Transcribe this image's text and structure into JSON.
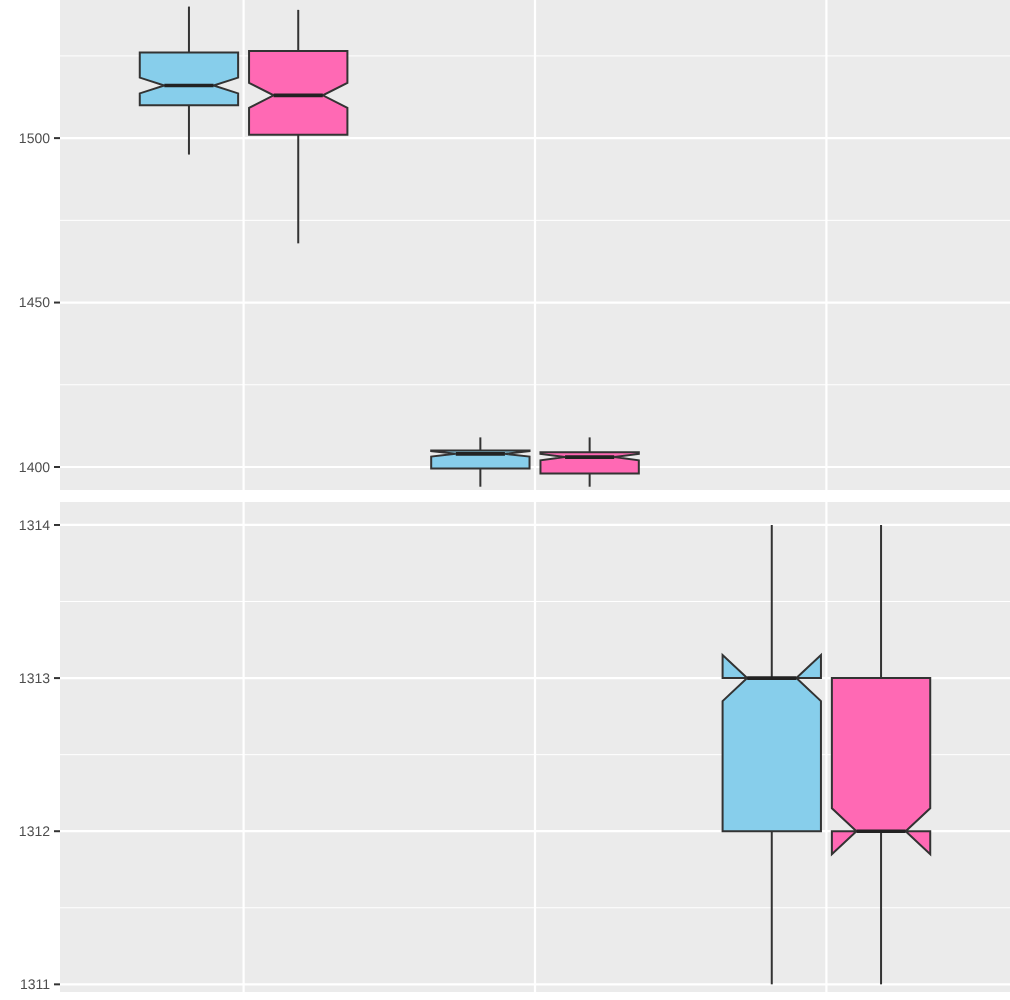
{
  "chart_data": [
    {
      "type": "box",
      "categories": [
        null,
        null,
        null
      ],
      "ylim": [
        1393,
        1542
      ],
      "yticks": [
        {
          "value": 1400,
          "label": "1400"
        },
        {
          "value": 1425,
          "label": null
        },
        {
          "value": 1450,
          "label": "1450"
        },
        {
          "value": 1475,
          "label": null
        },
        {
          "value": 1500,
          "label": "1500"
        },
        {
          "value": 1525,
          "label": null
        }
      ],
      "grid": true,
      "tick_labels": "y",
      "series": [
        {
          "color": "#87ceeb",
          "boxes": [
            {
              "low": 1495,
              "q1": 1510,
              "median": 1516,
              "q3": 1526,
              "high": 1540
            },
            {
              "low": 1394,
              "q1": 1399.5,
              "median": 1404,
              "q3": 1405,
              "high": 1409
            },
            null
          ]
        },
        {
          "color": "#ff69b4",
          "boxes": [
            {
              "low": 1468,
              "q1": 1501,
              "median": 1513,
              "q3": 1526.5,
              "high": 1539
            },
            {
              "low": 1394,
              "q1": 1398,
              "median": 1403,
              "q3": 1404.5,
              "high": 1409
            },
            null
          ]
        }
      ]
    },
    {
      "type": "box",
      "categories": [
        null,
        null,
        null
      ],
      "ylim": [
        1310.95,
        1314.15
      ],
      "yticks": [
        {
          "value": 1311,
          "label": "1311"
        },
        {
          "value": 1311.5,
          "label": null
        },
        {
          "value": 1312,
          "label": "1312"
        },
        {
          "value": 1312.5,
          "label": null
        },
        {
          "value": 1313,
          "label": "1313"
        },
        {
          "value": 1313.5,
          "label": null
        },
        {
          "value": 1314,
          "label": "1314"
        }
      ],
      "grid": true,
      "tick_labels": "y",
      "series": [
        {
          "color": "#87ceeb",
          "boxes": [
            null,
            null,
            {
              "low": 1311,
              "q1": 1312,
              "median": 1313,
              "q3": 1313,
              "high": 1314
            }
          ]
        },
        {
          "color": "#ff69b4",
          "boxes": [
            null,
            null,
            {
              "low": 1311,
              "q1": 1312,
              "median": 1312,
              "q3": 1313,
              "high": 1314
            }
          ]
        }
      ]
    }
  ]
}
